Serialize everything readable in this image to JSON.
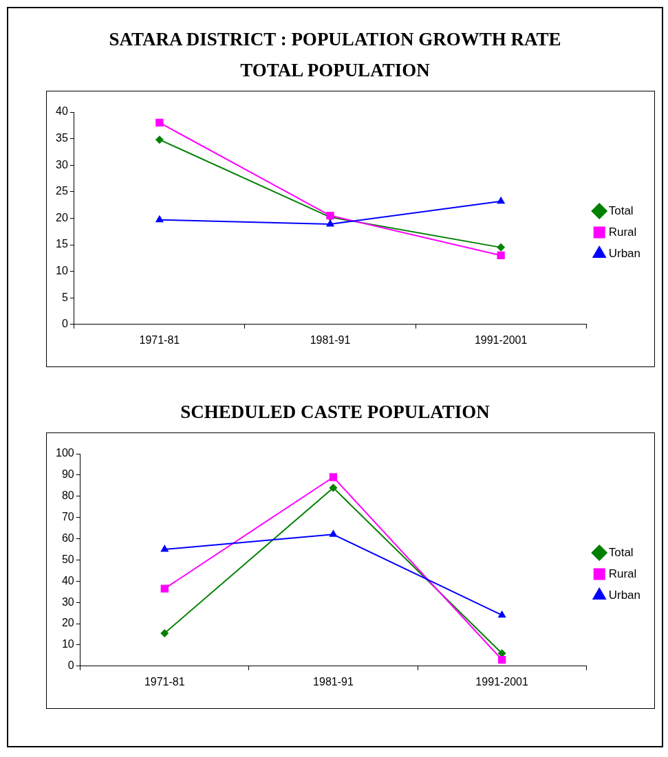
{
  "chart_data": [
    {
      "type": "line",
      "title": "SATARA DISTRICT : POPULATION GROWTH RATE",
      "subtitle": "TOTAL POPULATION",
      "categories": [
        "1971-81",
        "1981-91",
        "1991-2001"
      ],
      "series": [
        {
          "name": "Total",
          "color": "#008000",
          "marker": "diamond",
          "values": [
            34.8,
            20.2,
            14.5
          ]
        },
        {
          "name": "Rural",
          "color": "#ff00ff",
          "marker": "square",
          "values": [
            38,
            20.5,
            13
          ]
        },
        {
          "name": "Urban",
          "color": "#0000ff",
          "marker": "triangle",
          "values": [
            19.7,
            18.9,
            23.2
          ]
        }
      ],
      "ylim": [
        0,
        40
      ],
      "yticks": [
        0,
        5,
        10,
        15,
        20,
        25,
        30,
        35,
        40
      ],
      "grid": false,
      "legend": "right",
      "line_style": "solid"
    },
    {
      "type": "line",
      "title": "SCHEDULED CASTE POPULATION",
      "categories": [
        "1971-81",
        "1981-91",
        "1991-2001"
      ],
      "series": [
        {
          "name": "Total",
          "color": "#008000",
          "marker": "diamond",
          "values": [
            15.5,
            84,
            6
          ]
        },
        {
          "name": "Rural",
          "color": "#ff00ff",
          "marker": "square",
          "values": [
            36.5,
            89,
            3
          ]
        },
        {
          "name": "Urban",
          "color": "#0000ff",
          "marker": "triangle",
          "values": [
            55,
            62,
            24
          ]
        }
      ],
      "ylim": [
        0,
        100
      ],
      "yticks": [
        0,
        10,
        20,
        30,
        40,
        50,
        60,
        70,
        80,
        90,
        100
      ],
      "grid": false,
      "legend": "right",
      "line_style": "solid"
    }
  ]
}
